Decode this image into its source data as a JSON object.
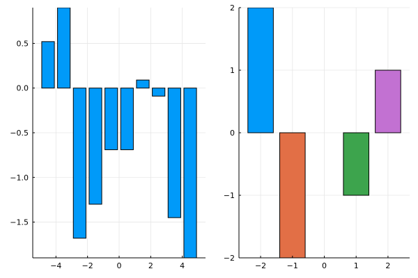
{
  "chart_data": [
    {
      "type": "bar",
      "title": "",
      "xlabel": "",
      "ylabel": "",
      "grid": true,
      "legend": "none",
      "xlim": [
        -5.47,
        5.47
      ],
      "ylim": [
        -1.9,
        0.9
      ],
      "bar_width": 0.8,
      "x": [
        -4.5,
        -3.5,
        -2.5,
        -1.5,
        -0.5,
        0.5,
        1.5,
        2.5,
        3.5,
        4.5
      ],
      "values": [
        0.52,
        0.9,
        -1.68,
        -1.3,
        -0.69,
        -0.69,
        0.09,
        -0.09,
        -1.45,
        -1.9
      ],
      "colors": [
        "#009af9",
        "#009af9",
        "#009af9",
        "#009af9",
        "#009af9",
        "#009af9",
        "#009af9",
        "#009af9",
        "#009af9",
        "#009af9"
      ],
      "x_ticks": [
        {
          "value": -4,
          "label": "−4"
        },
        {
          "value": -2,
          "label": "−2"
        },
        {
          "value": 0,
          "label": "0"
        },
        {
          "value": 2,
          "label": "2"
        },
        {
          "value": 4,
          "label": "4"
        }
      ],
      "y_ticks": [
        {
          "value": 0.5,
          "label": "0.5"
        },
        {
          "value": 0.0,
          "label": "0.0"
        },
        {
          "value": -0.5,
          "label": "−0.5"
        },
        {
          "value": -1.0,
          "label": "−1.0"
        },
        {
          "value": -1.5,
          "label": "−1.5"
        }
      ]
    },
    {
      "type": "bar",
      "title": "",
      "xlabel": "",
      "ylabel": "",
      "grid": true,
      "legend": "none",
      "xlim": [
        -2.68,
        2.68
      ],
      "ylim": [
        -2,
        2
      ],
      "bar_width": 0.8,
      "x": [
        -2,
        -1,
        1,
        2
      ],
      "values": [
        2,
        -2,
        -1,
        1
      ],
      "colors": [
        "#009af9",
        "#e26f46",
        "#3da44d",
        "#c271d2"
      ],
      "x_ticks": [
        {
          "value": -2,
          "label": "−2"
        },
        {
          "value": -1,
          "label": "−1"
        },
        {
          "value": 0,
          "label": "0"
        },
        {
          "value": 1,
          "label": "1"
        },
        {
          "value": 2,
          "label": "2"
        }
      ],
      "y_ticks": [
        {
          "value": 2,
          "label": "2"
        },
        {
          "value": 1,
          "label": "1"
        },
        {
          "value": 0,
          "label": "0"
        },
        {
          "value": -1,
          "label": "−1"
        },
        {
          "value": -2,
          "label": "−2"
        }
      ]
    }
  ]
}
